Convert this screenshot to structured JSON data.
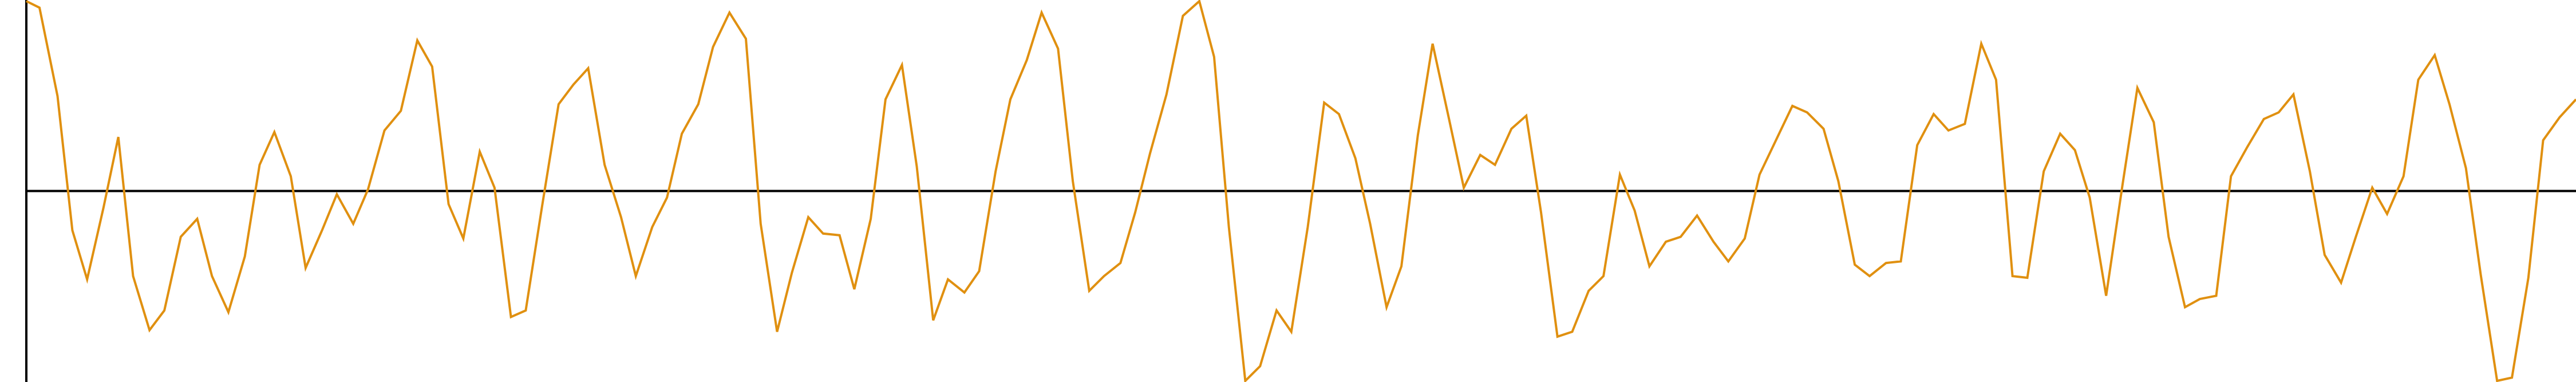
{
  "chart_data": {
    "type": "line",
    "x": [
      0,
      8,
      19,
      28,
      37,
      47,
      56,
      65,
      75,
      84,
      94,
      104,
      113,
      123,
      133,
      142,
      151,
      161,
      170,
      180,
      189,
      199,
      208,
      218,
      228,
      238,
      247,
      257,
      266,
      276,
      285,
      295,
      304,
      314,
      324,
      333,
      342,
      352,
      362,
      371,
      381,
      390,
      399,
      409,
      418,
      428,
      438,
      447,
      457,
      466,
      476,
      485,
      495,
      504,
      514,
      523,
      533,
      542,
      552,
      561,
      571,
      580,
      590,
      599,
      609,
      618,
      628,
      637,
      647,
      656,
      666,
      675,
      684,
      694,
      704,
      714,
      723,
      732,
      742,
      751,
      761,
      770,
      780,
      790,
      799,
      809,
      818,
      828,
      837,
      847,
      856,
      866,
      875,
      885,
      894,
      904,
      913,
      922,
      932,
      941,
      951,
      960,
      970,
      979,
      988,
      998,
      1007,
      1017,
      1027,
      1036,
      1046,
      1055,
      1065,
      1075,
      1084,
      1094,
      1103,
      1113,
      1122,
      1132,
      1141,
      1151,
      1161,
      1170,
      1180,
      1190,
      1199,
      1209,
      1218,
      1228,
      1238,
      1247,
      1256,
      1266,
      1276,
      1285,
      1295,
      1304,
      1314,
      1323,
      1333,
      1342,
      1352,
      1362,
      1371,
      1380,
      1390,
      1399,
      1409,
      1418,
      1428,
      1437,
      1447,
      1456,
      1466,
      1475,
      1485,
      1494,
      1504,
      1513,
      1523,
      1532,
      1542,
      1552
    ],
    "series": [
      {
        "color": "#e09010",
        "values": [
          116,
          112,
          58,
          -24,
          -54,
          -10,
          33,
          -52,
          -85,
          -73,
          -28,
          -17,
          -52,
          -74,
          -40,
          16,
          36,
          9,
          -47,
          -24,
          -2,
          -20,
          1,
          37,
          49,
          92,
          76,
          -8,
          -29,
          24,
          2,
          -77,
          -73,
          -9,
          53,
          65,
          75,
          16,
          -16,
          -52,
          -22,
          -4,
          35,
          53,
          88,
          109,
          93,
          -20,
          -86,
          -50,
          -16,
          -26,
          -27,
          -60,
          -17,
          56,
          77,
          15,
          -79,
          -54,
          -62,
          -49,
          12,
          56,
          80,
          109,
          87,
          6,
          -61,
          -52,
          -44,
          -13,
          23,
          59,
          107,
          116,
          82,
          -22,
          -116,
          -107,
          -73,
          -86,
          -22,
          54,
          47,
          20,
          -20,
          -71,
          -46,
          34,
          90,
          44,
          2,
          22,
          16,
          38,
          46,
          -13,
          -89,
          -86,
          -61,
          -52,
          10,
          -12,
          -46,
          -31,
          -28,
          -15,
          -31,
          -43,
          -29,
          10,
          31,
          52,
          48,
          38,
          6,
          -45,
          -52,
          -44,
          -43,
          28,
          47,
          37,
          41,
          90,
          68,
          -52,
          -53,
          12,
          35,
          25,
          -4,
          -64,
          4,
          63,
          42,
          -28,
          -71,
          -66,
          -64,
          9,
          27,
          44,
          48,
          59,
          12,
          -39,
          -56,
          -28,
          2,
          -14,
          9,
          68,
          83,
          53,
          14,
          -51,
          -116,
          -114,
          -53,
          31,
          45,
          56
        ]
      }
    ],
    "xlim": [
      0,
      1552
    ],
    "ylim": [
      -116,
      116
    ]
  }
}
